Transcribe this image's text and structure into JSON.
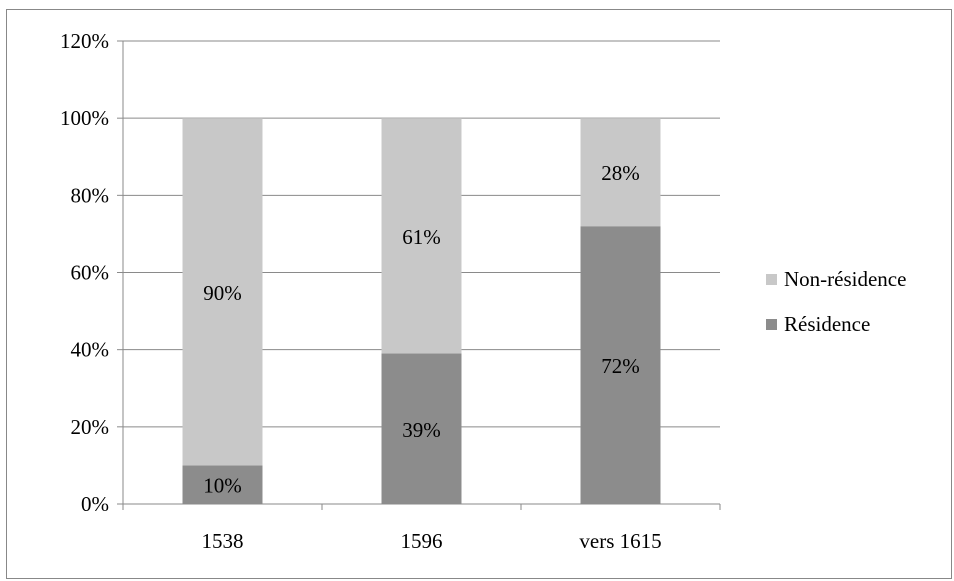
{
  "chart_data": {
    "type": "bar",
    "stacked": true,
    "categories": [
      "1538",
      "1596",
      "vers 1615"
    ],
    "series": [
      {
        "name": "Résidence",
        "values": [
          10,
          39,
          72
        ],
        "labels": [
          "10%",
          "39%",
          "72%"
        ],
        "color": "#8c8c8c"
      },
      {
        "name": "Non-résidence",
        "values": [
          90,
          61,
          28
        ],
        "labels": [
          "90%",
          "61%",
          "28%"
        ],
        "color": "#c8c8c8"
      }
    ],
    "y_ticks": [
      "0%",
      "20%",
      "40%",
      "60%",
      "80%",
      "100%",
      "120%"
    ],
    "ylim": [
      0,
      120
    ],
    "grid": true,
    "legend_position": "right"
  }
}
